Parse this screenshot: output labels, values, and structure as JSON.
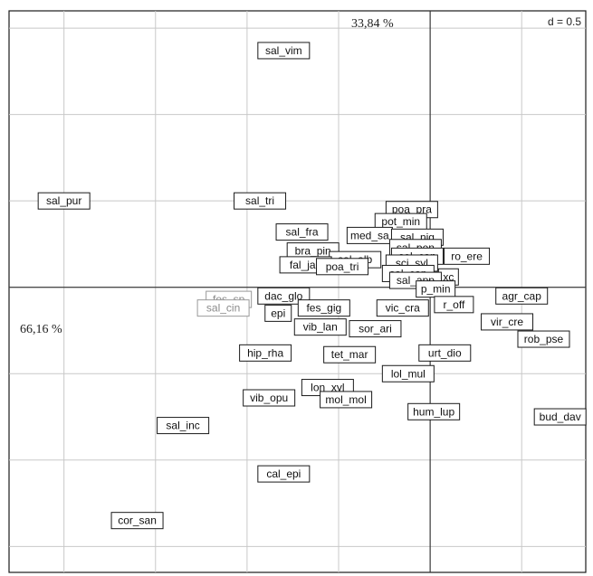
{
  "chart_data": {
    "type": "scatter",
    "title": "",
    "grid_step": 0.5,
    "grid": true,
    "scale_label": "d = 0.5",
    "axis1_inertia": "66,16 %",
    "axis2_inertia": "33,84 %",
    "xlim": [
      -2.3,
      0.85
    ],
    "ylim": [
      -1.65,
      1.6
    ],
    "points": [
      {
        "label": "sal_vim",
        "x": -0.8,
        "y": 1.37,
        "faded": false
      },
      {
        "label": "sal_pur",
        "x": -2.0,
        "y": 0.5,
        "faded": false
      },
      {
        "label": "sal_tri",
        "x": -0.93,
        "y": 0.5,
        "faded": false
      },
      {
        "label": "poa_pra",
        "x": -0.1,
        "y": 0.45,
        "faded": false
      },
      {
        "label": "pot_min",
        "x": -0.16,
        "y": 0.38,
        "faded": false
      },
      {
        "label": "sal_fra",
        "x": -0.7,
        "y": 0.32,
        "faded": false
      },
      {
        "label": "med_sa",
        "x": -0.33,
        "y": 0.3,
        "faded": false
      },
      {
        "label": "sal_nig",
        "x": -0.07,
        "y": 0.29,
        "faded": false
      },
      {
        "label": "sal_pen",
        "x": -0.08,
        "y": 0.23,
        "faded": false
      },
      {
        "label": "bra_pin",
        "x": -0.64,
        "y": 0.21,
        "faded": false
      },
      {
        "label": "sol_can",
        "x": -0.07,
        "y": 0.18,
        "faded": false
      },
      {
        "label": "sal_alb",
        "x": -0.41,
        "y": 0.16,
        "faded": false
      },
      {
        "label": "ro_ere",
        "x": 0.2,
        "y": 0.18,
        "faded": false
      },
      {
        "label": "sci_syl",
        "x": -0.1,
        "y": 0.14,
        "faded": false
      },
      {
        "label": "fal_jap",
        "x": -0.68,
        "y": 0.13,
        "faded": false
      },
      {
        "label": "poa_tri",
        "x": -0.48,
        "y": 0.12,
        "faded": false
      },
      {
        "label": "sal_cap",
        "x": -0.12,
        "y": 0.08,
        "faded": false
      },
      {
        "label": "xc",
        "x": 0.1,
        "y": 0.06,
        "faded": false
      },
      {
        "label": "sal_app",
        "x": -0.08,
        "y": 0.04,
        "faded": false
      },
      {
        "label": "p_min",
        "x": 0.03,
        "y": -0.01,
        "faded": false
      },
      {
        "label": "dac_glo",
        "x": -0.8,
        "y": -0.05,
        "faded": false
      },
      {
        "label": "fes_sp",
        "x": -1.1,
        "y": -0.07,
        "faded": true
      },
      {
        "label": "agr_cap",
        "x": 0.5,
        "y": -0.05,
        "faded": false
      },
      {
        "label": "sal_cin",
        "x": -1.13,
        "y": -0.12,
        "faded": true
      },
      {
        "label": "fes_gig",
        "x": -0.58,
        "y": -0.12,
        "faded": false
      },
      {
        "label": "vic_cra",
        "x": -0.15,
        "y": -0.12,
        "faded": false
      },
      {
        "label": "r_off",
        "x": 0.13,
        "y": -0.1,
        "faded": false
      },
      {
        "label": "epi",
        "x": -0.83,
        "y": -0.15,
        "faded": false
      },
      {
        "label": "vir_cre",
        "x": 0.42,
        "y": -0.2,
        "faded": false
      },
      {
        "label": "vib_lan",
        "x": -0.6,
        "y": -0.23,
        "faded": false
      },
      {
        "label": "sor_ari",
        "x": -0.3,
        "y": -0.24,
        "faded": false
      },
      {
        "label": "rob_pse",
        "x": 0.62,
        "y": -0.3,
        "faded": false
      },
      {
        "label": "hip_rha",
        "x": -0.9,
        "y": -0.38,
        "faded": false
      },
      {
        "label": "tet_mar",
        "x": -0.44,
        "y": -0.39,
        "faded": false
      },
      {
        "label": "urt_dio",
        "x": 0.08,
        "y": -0.38,
        "faded": false
      },
      {
        "label": "lol_mul",
        "x": -0.12,
        "y": -0.5,
        "faded": false
      },
      {
        "label": "lon_xyl",
        "x": -0.56,
        "y": -0.58,
        "faded": false
      },
      {
        "label": "vib_opu",
        "x": -0.88,
        "y": -0.64,
        "faded": false
      },
      {
        "label": "mol_mol",
        "x": -0.46,
        "y": -0.65,
        "faded": false
      },
      {
        "label": "hum_lup",
        "x": 0.02,
        "y": -0.72,
        "faded": false
      },
      {
        "label": "bud_dav",
        "x": 0.71,
        "y": -0.75,
        "faded": false
      },
      {
        "label": "sal_inc",
        "x": -1.35,
        "y": -0.8,
        "faded": false
      },
      {
        "label": "cal_epi",
        "x": -0.8,
        "y": -1.08,
        "faded": false
      },
      {
        "label": "cor_san",
        "x": -1.6,
        "y": -1.35,
        "faded": false
      }
    ]
  }
}
